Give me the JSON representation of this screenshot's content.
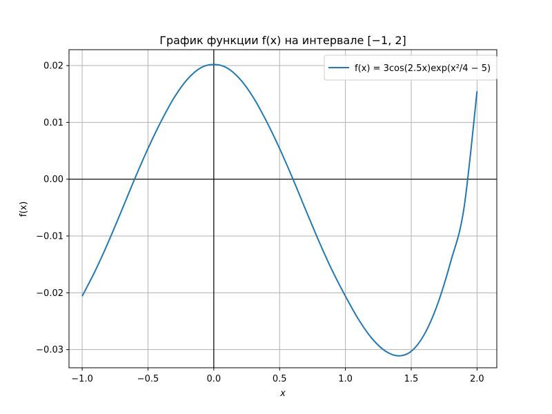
{
  "chart_data": {
    "type": "line",
    "title": "График функции f(x) на интервале [−1, 2]",
    "xlabel": "x",
    "ylabel": "f(x)",
    "xlim": [
      -1.1,
      2.15
    ],
    "ylim": [
      -0.0332,
      0.0228
    ],
    "xticks": [
      -1.0,
      -0.5,
      0.0,
      0.5,
      1.0,
      1.5,
      2.0
    ],
    "xtick_labels": [
      "−1.0",
      "−0.5",
      "0.0",
      "0.5",
      "1.0",
      "1.5",
      "2.0"
    ],
    "yticks": [
      -0.03,
      -0.02,
      -0.01,
      0.0,
      0.01,
      0.02
    ],
    "ytick_labels": [
      "−0.03",
      "−0.02",
      "−0.01",
      "0.00",
      "0.01",
      "0.02"
    ],
    "grid": true,
    "zero_lines": true,
    "legend_position": "upper right",
    "series": [
      {
        "name": "f(x) = 3cos(2.5x)exp(x²/4 − 5)",
        "color": "#1f77b4",
        "x": [
          -1.0,
          -0.9,
          -0.8,
          -0.7,
          -0.6,
          -0.5,
          -0.4,
          -0.3,
          -0.2,
          -0.1,
          0.0,
          0.1,
          0.2,
          0.3,
          0.4,
          0.5,
          0.6,
          0.7,
          0.8,
          0.9,
          1.0,
          1.1,
          1.2,
          1.3,
          1.4,
          1.5,
          1.6,
          1.7,
          1.8,
          1.9,
          2.0
        ],
        "values": [
          -0.0206,
          -0.0161,
          -0.011,
          -0.0055,
          0.0001,
          0.0054,
          0.0102,
          0.0144,
          0.0176,
          0.0196,
          0.0202,
          0.0196,
          0.0176,
          0.0144,
          0.0102,
          0.0054,
          0.0001,
          -0.0055,
          -0.011,
          -0.0161,
          -0.0206,
          -0.0247,
          -0.028,
          -0.0302,
          -0.0311,
          -0.0303,
          -0.0273,
          -0.022,
          -0.0145,
          -0.0052,
          0.0155
        ]
      }
    ]
  }
}
